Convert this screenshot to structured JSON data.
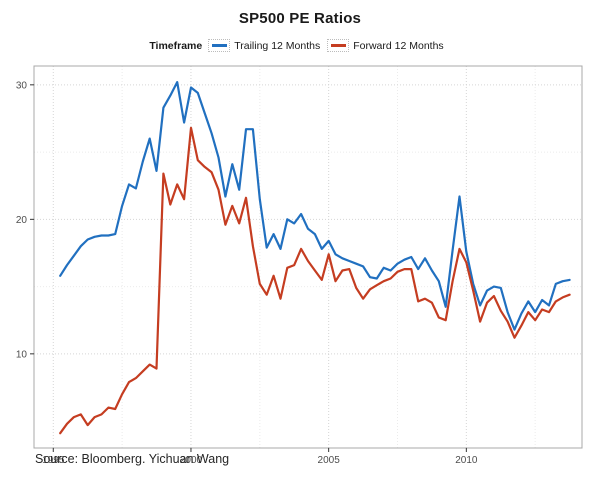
{
  "title": "SP500 PE Ratios",
  "legend": {
    "title": "Timeframe",
    "items": [
      {
        "label": "Trailing 12 Months",
        "color": "#2170c0"
      },
      {
        "label": "Forward 12 Months",
        "color": "#c53d21"
      }
    ]
  },
  "source_note": "Source: Bloomberg. Yichuan Wang",
  "chart_data": {
    "type": "line",
    "title": "SP500 PE Ratios",
    "xlabel": "",
    "ylabel": "",
    "legend_title": "Timeframe",
    "legend_position": "top",
    "grid": true,
    "xlim": [
      1994.3,
      2014.2
    ],
    "ylim": [
      3.0,
      31.4
    ],
    "x_ticks": [
      1995,
      2000,
      2005,
      2010
    ],
    "x_minor_ticks": [
      1997.5,
      2002.5,
      2007.5,
      2012.5
    ],
    "y_ticks": [
      10,
      20,
      30
    ],
    "y_minor_ticks": [
      15,
      25
    ],
    "x": [
      1995.25,
      1995.5,
      1995.75,
      1996,
      1996.25,
      1996.5,
      1996.75,
      1997,
      1997.25,
      1997.5,
      1997.75,
      1998,
      1998.25,
      1998.5,
      1998.75,
      1999,
      1999.25,
      1999.5,
      1999.75,
      2000,
      2000.25,
      2000.5,
      2000.75,
      2001,
      2001.25,
      2001.5,
      2001.75,
      2002,
      2002.25,
      2002.5,
      2002.75,
      2003,
      2003.25,
      2003.5,
      2003.75,
      2004,
      2004.25,
      2004.5,
      2004.75,
      2005,
      2005.25,
      2005.5,
      2005.75,
      2006,
      2006.25,
      2006.5,
      2006.75,
      2007,
      2007.25,
      2007.5,
      2007.75,
      2008,
      2008.25,
      2008.5,
      2008.75,
      2009,
      2009.25,
      2009.5,
      2009.75,
      2010,
      2010.25,
      2010.5,
      2010.75,
      2011,
      2011.25,
      2011.5,
      2011.75,
      2012,
      2012.25,
      2012.5,
      2012.75,
      2013,
      2013.25,
      2013.5,
      2013.75
    ],
    "series": [
      {
        "name": "Trailing 12 Months",
        "color": "#2170c0",
        "values": [
          15.8,
          16.6,
          17.3,
          18,
          18.5,
          18.7,
          18.8,
          18.8,
          18.9,
          21,
          22.6,
          22.3,
          24.3,
          26,
          23.6,
          28.3,
          29.2,
          30.2,
          27.2,
          29.8,
          29.4,
          27.9,
          26.4,
          24.6,
          21.7,
          24.1,
          22.2,
          26.7,
          26.7,
          21.5,
          17.9,
          18.9,
          17.8,
          20,
          19.7,
          20.4,
          19.3,
          18.9,
          17.8,
          18.4,
          17.4,
          17.1,
          16.9,
          16.7,
          16.5,
          15.7,
          15.6,
          16.4,
          16.2,
          16.7,
          17,
          17.2,
          16.3,
          17.1,
          16.2,
          15.4,
          13.5,
          17.7,
          21.7,
          17.6,
          15.2,
          13.6,
          14.7,
          15,
          14.9,
          13.1,
          11.8,
          13,
          13.9,
          13.1,
          14,
          13.6,
          15.2,
          15.4,
          15.5
        ]
      },
      {
        "name": "Forward 12 Months",
        "color": "#c53d21",
        "values": [
          4.1,
          4.8,
          5.3,
          5.5,
          4.7,
          5.3,
          5.5,
          6,
          5.9,
          7,
          7.9,
          8.2,
          8.7,
          9.2,
          8.9,
          23.4,
          21.1,
          22.6,
          21.5,
          26.8,
          24.4,
          23.9,
          23.5,
          22.2,
          19.6,
          21,
          19.7,
          21.6,
          18,
          15.2,
          14.4,
          15.8,
          14.1,
          16.4,
          16.6,
          17.8,
          16.9,
          16.2,
          15.5,
          17.4,
          15.4,
          16.2,
          16.3,
          14.9,
          14.1,
          14.8,
          15.1,
          15.4,
          15.6,
          16.1,
          16.3,
          16.3,
          13.9,
          14.1,
          13.8,
          12.7,
          12.5,
          15.4,
          17.8,
          16.8,
          14.7,
          12.4,
          13.8,
          14.3,
          13.2,
          12.4,
          11.2,
          12.1,
          13.1,
          12.5,
          13.3,
          13.1,
          13.9,
          14.2,
          14.4
        ]
      }
    ]
  }
}
